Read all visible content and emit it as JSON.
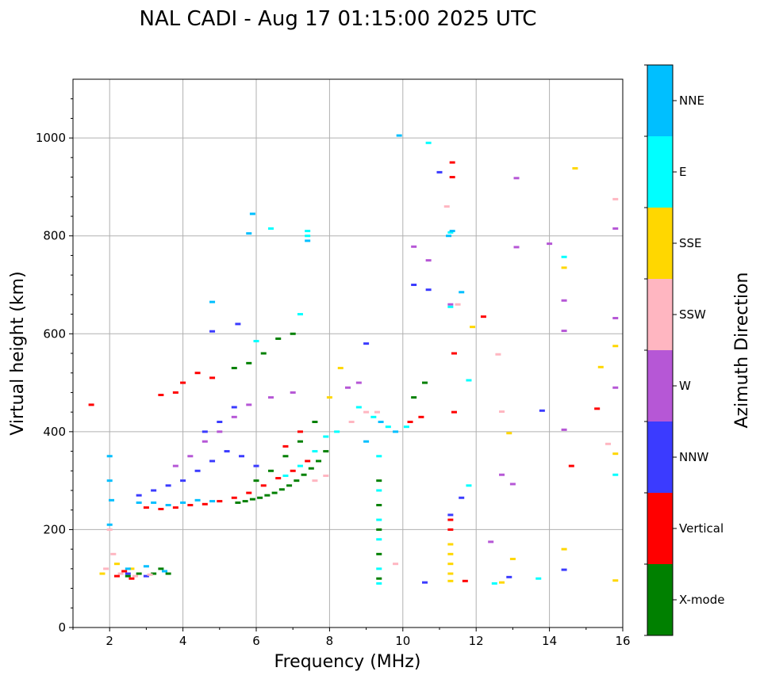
{
  "title": "NAL CADI - Aug 17 01:15:00 2025 UTC",
  "chart_data": {
    "type": "scatter",
    "title": "NAL CADI - Aug 17 01:15:00 2025 UTC",
    "xlabel": "Frequency (MHz)",
    "ylabel": "Virtual height (km)",
    "xlim": [
      1,
      16
    ],
    "ylim": [
      0,
      1120
    ],
    "xticks": [
      2,
      4,
      6,
      8,
      10,
      12,
      14,
      16
    ],
    "yticks": [
      0,
      200,
      400,
      600,
      800,
      1000
    ],
    "xtick_labels": [
      "2",
      "4",
      "6",
      "8",
      "10",
      "12",
      "14",
      "16"
    ],
    "ytick_labels": [
      "0",
      "200",
      "400",
      "600",
      "800",
      "1000"
    ],
    "grid": true,
    "colorbar": {
      "label": "Azimuth Direction",
      "categories": [
        "X-mode",
        "Vertical",
        "NNW",
        "W",
        "SSW",
        "SSE",
        "E",
        "NNE"
      ],
      "colors": [
        "#008000",
        "#ff0000",
        "#3b3bff",
        "#b657d6",
        "#ffb6c1",
        "#ffd700",
        "#00ffff",
        "#00bfff"
      ]
    },
    "series": [
      {
        "name": "X-mode",
        "points": [
          [
            5.5,
            255
          ],
          [
            5.7,
            258
          ],
          [
            5.9,
            262
          ],
          [
            6.1,
            265
          ],
          [
            6.3,
            270
          ],
          [
            6.5,
            275
          ],
          [
            6.7,
            282
          ],
          [
            6.9,
            290
          ],
          [
            7.1,
            300
          ],
          [
            7.3,
            312
          ],
          [
            7.5,
            325
          ],
          [
            7.7,
            340
          ],
          [
            7.9,
            360
          ],
          [
            6.0,
            300
          ],
          [
            6.4,
            320
          ],
          [
            6.8,
            350
          ],
          [
            7.2,
            380
          ],
          [
            7.6,
            420
          ],
          [
            6.2,
            560
          ],
          [
            6.6,
            590
          ],
          [
            7.0,
            600
          ],
          [
            5.4,
            530
          ],
          [
            5.8,
            540
          ],
          [
            9.35,
            300
          ],
          [
            9.35,
            250
          ],
          [
            9.35,
            200
          ],
          [
            9.35,
            150
          ],
          [
            9.35,
            100
          ],
          [
            10.3,
            470
          ],
          [
            10.6,
            500
          ],
          [
            2.8,
            110
          ],
          [
            3.2,
            110
          ],
          [
            3.6,
            110
          ],
          [
            3.4,
            120
          ],
          [
            2.5,
            105
          ]
        ]
      },
      {
        "name": "Vertical",
        "points": [
          [
            3.0,
            245
          ],
          [
            3.4,
            242
          ],
          [
            3.8,
            245
          ],
          [
            4.2,
            250
          ],
          [
            4.6,
            252
          ],
          [
            5.0,
            258
          ],
          [
            5.4,
            265
          ],
          [
            5.8,
            275
          ],
          [
            6.2,
            290
          ],
          [
            6.6,
            305
          ],
          [
            7.0,
            320
          ],
          [
            7.4,
            340
          ],
          [
            3.8,
            480
          ],
          [
            4.0,
            500
          ],
          [
            4.4,
            520
          ],
          [
            4.8,
            510
          ],
          [
            3.4,
            475
          ],
          [
            1.5,
            455
          ],
          [
            6.8,
            370
          ],
          [
            7.2,
            400
          ],
          [
            10.2,
            420
          ],
          [
            10.5,
            430
          ],
          [
            11.3,
            220
          ],
          [
            11.3,
            200
          ],
          [
            11.35,
            950
          ],
          [
            11.35,
            920
          ],
          [
            11.4,
            560
          ],
          [
            11.4,
            440
          ],
          [
            11.7,
            95
          ],
          [
            12.2,
            635
          ],
          [
            15.3,
            447
          ],
          [
            14.6,
            330
          ],
          [
            2.2,
            105
          ],
          [
            2.4,
            115
          ],
          [
            2.6,
            100
          ]
        ]
      },
      {
        "name": "NNW",
        "points": [
          [
            2.8,
            270
          ],
          [
            3.2,
            280
          ],
          [
            3.6,
            290
          ],
          [
            4.0,
            300
          ],
          [
            4.4,
            320
          ],
          [
            4.8,
            340
          ],
          [
            5.2,
            360
          ],
          [
            5.6,
            350
          ],
          [
            6.0,
            330
          ],
          [
            4.6,
            400
          ],
          [
            5.0,
            420
          ],
          [
            5.4,
            450
          ],
          [
            4.8,
            605
          ],
          [
            5.5,
            620
          ],
          [
            9.0,
            580
          ],
          [
            10.3,
            700
          ],
          [
            10.7,
            690
          ],
          [
            11.3,
            230
          ],
          [
            13.8,
            443
          ],
          [
            14.4,
            118
          ],
          [
            10.6,
            92
          ],
          [
            12.9,
            103
          ],
          [
            11.0,
            930
          ],
          [
            11.6,
            265
          ],
          [
            2.5,
            110
          ],
          [
            3.0,
            105
          ]
        ]
      },
      {
        "name": "W",
        "points": [
          [
            3.8,
            330
          ],
          [
            4.2,
            350
          ],
          [
            4.6,
            380
          ],
          [
            5.0,
            400
          ],
          [
            5.4,
            430
          ],
          [
            5.8,
            455
          ],
          [
            6.4,
            470
          ],
          [
            7.0,
            480
          ],
          [
            10.3,
            778
          ],
          [
            10.7,
            750
          ],
          [
            11.3,
            660
          ],
          [
            13.1,
            918
          ],
          [
            13.1,
            777
          ],
          [
            14.0,
            784
          ],
          [
            14.4,
            668
          ],
          [
            14.4,
            606
          ],
          [
            14.4,
            404
          ],
          [
            15.8,
            815
          ],
          [
            15.8,
            632
          ],
          [
            15.8,
            490
          ],
          [
            13.0,
            293
          ],
          [
            12.7,
            312
          ],
          [
            12.4,
            175
          ],
          [
            8.5,
            490
          ],
          [
            8.8,
            500
          ]
        ]
      },
      {
        "name": "SSW",
        "points": [
          [
            2.0,
            200
          ],
          [
            2.1,
            150
          ],
          [
            1.9,
            120
          ],
          [
            2.3,
            110
          ],
          [
            2.7,
            105
          ],
          [
            3.1,
            108
          ],
          [
            7.6,
            300
          ],
          [
            7.9,
            310
          ],
          [
            8.6,
            420
          ],
          [
            9.0,
            440
          ],
          [
            9.3,
            440
          ],
          [
            11.2,
            860
          ],
          [
            11.5,
            660
          ],
          [
            12.6,
            558
          ],
          [
            12.7,
            441
          ],
          [
            15.6,
            375
          ],
          [
            15.8,
            875
          ],
          [
            9.8,
            130
          ]
        ]
      },
      {
        "name": "SSE",
        "points": [
          [
            11.3,
            170
          ],
          [
            11.3,
            150
          ],
          [
            11.3,
            130
          ],
          [
            11.3,
            110
          ],
          [
            11.3,
            95
          ],
          [
            14.7,
            938
          ],
          [
            14.4,
            735
          ],
          [
            15.4,
            532
          ],
          [
            15.8,
            575
          ],
          [
            15.8,
            355
          ],
          [
            14.4,
            160
          ],
          [
            15.8,
            96
          ],
          [
            12.7,
            92
          ],
          [
            13.0,
            140
          ],
          [
            12.9,
            397
          ],
          [
            11.9,
            614
          ],
          [
            8.0,
            470
          ],
          [
            8.3,
            530
          ],
          [
            1.8,
            110
          ],
          [
            2.2,
            130
          ],
          [
            2.6,
            120
          ]
        ]
      },
      {
        "name": "E",
        "points": [
          [
            6.8,
            310
          ],
          [
            7.2,
            330
          ],
          [
            7.6,
            360
          ],
          [
            7.9,
            390
          ],
          [
            8.2,
            400
          ],
          [
            7.4,
            800
          ],
          [
            7.4,
            810
          ],
          [
            6.4,
            815
          ],
          [
            9.35,
            350
          ],
          [
            9.35,
            280
          ],
          [
            9.35,
            220
          ],
          [
            9.35,
            180
          ],
          [
            9.35,
            120
          ],
          [
            9.35,
            90
          ],
          [
            8.8,
            450
          ],
          [
            9.2,
            430
          ],
          [
            9.6,
            410
          ],
          [
            10.1,
            410
          ],
          [
            10.7,
            990
          ],
          [
            11.3,
            807
          ],
          [
            11.3,
            655
          ],
          [
            11.8,
            290
          ],
          [
            11.8,
            505
          ],
          [
            14.4,
            757
          ],
          [
            12.5,
            90
          ],
          [
            13.7,
            100
          ],
          [
            15.8,
            312
          ],
          [
            6.0,
            585
          ],
          [
            7.2,
            640
          ]
        ]
      },
      {
        "name": "NNE",
        "points": [
          [
            2.8,
            255
          ],
          [
            3.2,
            255
          ],
          [
            3.6,
            250
          ],
          [
            4.0,
            255
          ],
          [
            4.4,
            260
          ],
          [
            4.8,
            258
          ],
          [
            2.0,
            350
          ],
          [
            2.0,
            300
          ],
          [
            2.05,
            260
          ],
          [
            2.0,
            210
          ],
          [
            5.9,
            845
          ],
          [
            5.8,
            805
          ],
          [
            4.8,
            665
          ],
          [
            7.4,
            790
          ],
          [
            9.0,
            380
          ],
          [
            9.4,
            420
          ],
          [
            9.8,
            400
          ],
          [
            9.9,
            1005
          ],
          [
            11.25,
            800
          ],
          [
            11.35,
            810
          ],
          [
            11.6,
            685
          ],
          [
            2.5,
            120
          ],
          [
            3.0,
            125
          ],
          [
            3.5,
            115
          ]
        ]
      }
    ]
  }
}
